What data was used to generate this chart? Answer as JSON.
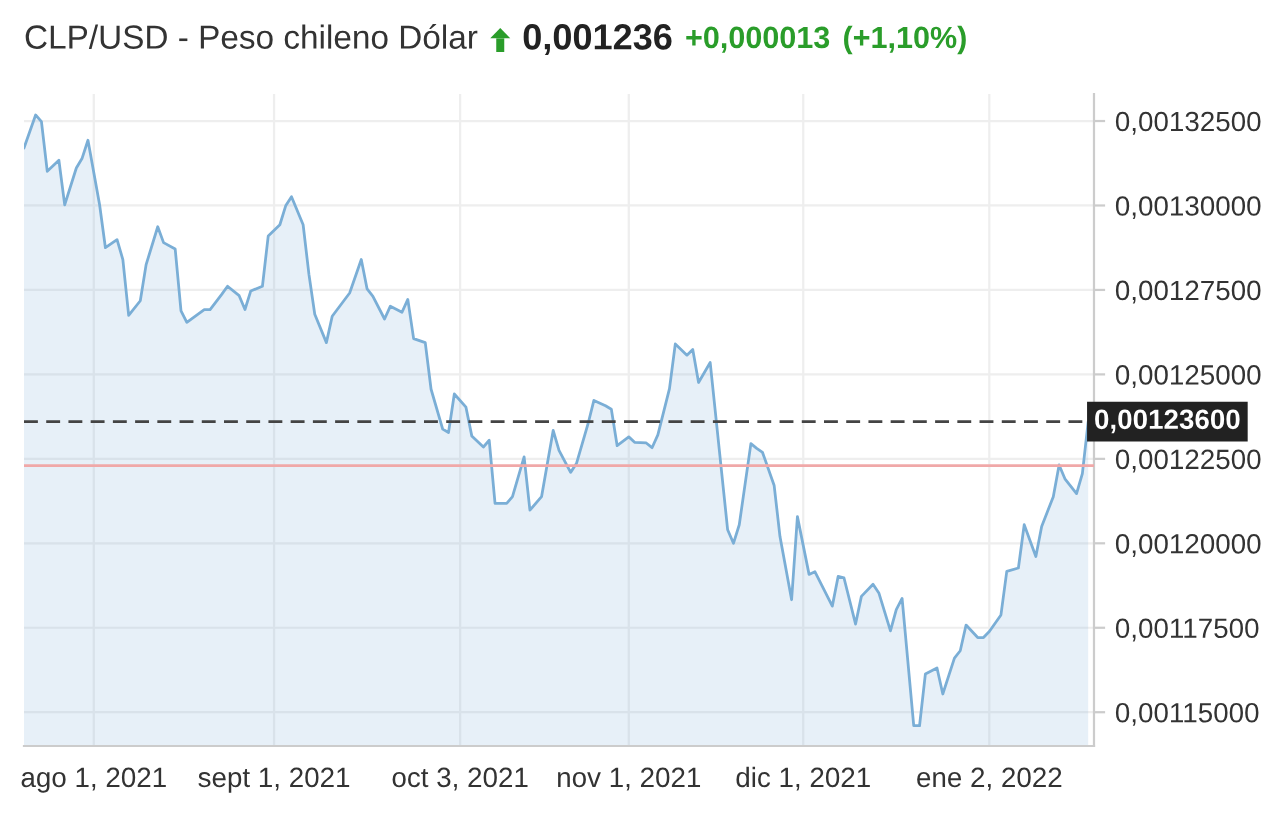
{
  "chart_data": {
    "type": "area",
    "title": "CLP/USD - Peso chileno Dólar",
    "annotations": [
      "0,001236",
      "+0,000013",
      "(+1,10%)"
    ],
    "x": [
      "2021-07-20",
      "2021-07-22",
      "2021-07-23",
      "2021-07-24",
      "2021-07-26",
      "2021-07-27",
      "2021-07-29",
      "2021-07-30",
      "2021-07-31",
      "2021-08-02",
      "2021-08-03",
      "2021-08-05",
      "2021-08-06",
      "2021-08-07",
      "2021-08-09",
      "2021-08-10",
      "2021-08-12",
      "2021-08-13",
      "2021-08-15",
      "2021-08-16",
      "2021-08-17",
      "2021-08-20",
      "2021-08-21",
      "2021-08-23",
      "2021-08-24",
      "2021-08-26",
      "2021-08-27",
      "2021-08-28",
      "2021-08-30",
      "2021-08-31",
      "2021-09-02",
      "2021-09-03",
      "2021-09-04",
      "2021-09-06",
      "2021-09-07",
      "2021-09-08",
      "2021-09-10",
      "2021-09-11",
      "2021-09-13",
      "2021-09-14",
      "2021-09-16",
      "2021-09-17",
      "2021-09-18",
      "2021-09-20",
      "2021-09-21",
      "2021-09-23",
      "2021-09-24",
      "2021-09-25",
      "2021-09-27",
      "2021-09-28",
      "2021-09-30",
      "2021-10-01",
      "2021-10-02",
      "2021-10-04",
      "2021-10-05",
      "2021-10-07",
      "2021-10-08",
      "2021-10-09",
      "2021-10-11",
      "2021-10-12",
      "2021-10-14",
      "2021-10-15",
      "2021-10-17",
      "2021-10-18",
      "2021-10-19",
      "2021-10-20",
      "2021-10-22",
      "2021-10-23",
      "2021-10-25",
      "2021-10-26",
      "2021-10-28",
      "2021-10-29",
      "2021-10-30",
      "2021-11-01",
      "2021-11-02",
      "2021-11-04",
      "2021-11-05",
      "2021-11-06",
      "2021-11-08",
      "2021-11-09",
      "2021-11-11",
      "2021-11-12",
      "2021-11-13",
      "2021-11-15",
      "2021-11-18",
      "2021-11-19",
      "2021-11-20",
      "2021-11-22",
      "2021-11-23",
      "2021-11-24",
      "2021-11-26",
      "2021-11-27",
      "2021-11-29",
      "2021-11-30",
      "2021-12-02",
      "2021-12-03",
      "2021-12-04",
      "2021-12-06",
      "2021-12-07",
      "2021-12-08",
      "2021-12-10",
      "2021-12-11",
      "2021-12-13",
      "2021-12-14",
      "2021-12-16",
      "2021-12-17",
      "2021-12-18",
      "2021-12-20",
      "2021-12-21",
      "2021-12-22",
      "2021-12-24",
      "2021-12-25",
      "2021-12-27",
      "2021-12-28",
      "2021-12-29",
      "2021-12-31",
      "2022-01-01",
      "2022-01-02",
      "2022-01-04",
      "2022-01-05",
      "2022-01-07",
      "2022-01-08",
      "2022-01-10",
      "2022-01-11",
      "2022-01-13",
      "2022-01-14",
      "2022-01-15",
      "2022-01-17",
      "2022-01-18",
      "2022-01-19"
    ],
    "series": [
      {
        "color": "#7aaed6",
        "values": [
          0.001317,
          0.0013268,
          0.0013248,
          0.0013101,
          0.0013134,
          0.0013002,
          0.0013111,
          0.001314,
          0.0013193,
          0.0013002,
          0.0012875,
          0.0012899,
          0.001284,
          0.0012675,
          0.0012718,
          0.0012825,
          0.0012937,
          0.001289,
          0.0012871,
          0.0012688,
          0.0012654,
          0.0012692,
          0.0012692,
          0.0012737,
          0.0012761,
          0.0012733,
          0.0012692,
          0.0012747,
          0.0012761,
          0.001291,
          0.0012943,
          0.0012999,
          0.0013026,
          0.0012943,
          0.0012796,
          0.0012678,
          0.0012594,
          0.0012672,
          0.0012718,
          0.0012741,
          0.001284,
          0.0012753,
          0.0012731,
          0.0012664,
          0.0012702,
          0.0012684,
          0.0012722,
          0.0012606,
          0.0012594,
          0.0012456,
          0.0012338,
          0.0012328,
          0.0012442,
          0.0012403,
          0.0012318,
          0.0012285,
          0.0012305,
          0.0012118,
          0.0012118,
          0.0012138,
          0.0012256,
          0.0012098,
          0.0012138,
          0.0012236,
          0.0012334,
          0.0012275,
          0.001221,
          0.0012236,
          0.0012354,
          0.0012423,
          0.0012407,
          0.0012397,
          0.0012289,
          0.0012315,
          0.0012299,
          0.0012297,
          0.0012283,
          0.0012321,
          0.0012458,
          0.001259,
          0.0012557,
          0.0012574,
          0.0012476,
          0.0012535,
          0.001204,
          0.0012,
          0.0012055,
          0.0012295,
          0.0012281,
          0.0012269,
          0.0012171,
          0.001202,
          0.0011833,
          0.0012079,
          0.0011908,
          0.0011916,
          0.0011882,
          0.0011814,
          0.0011902,
          0.0011898,
          0.0011761,
          0.0011843,
          0.0011879,
          0.0011853,
          0.0011741,
          0.0011804,
          0.0011837,
          0.001146,
          0.001146,
          0.0011613,
          0.0011631,
          0.0011554,
          0.001166,
          0.0011682,
          0.0011758,
          0.0011721,
          0.0011721,
          0.0011739,
          0.0011788,
          0.0011917,
          0.0011927,
          0.0012055,
          0.0011961,
          0.001205,
          0.0012138,
          0.0012232,
          0.0012191,
          0.0012147,
          0.0012206,
          0.001236
        ]
      }
    ],
    "xlim": [
      "2021-07-20",
      "2022-01-20"
    ],
    "xticks": [
      {
        "value": "2021-08-01",
        "label": "ago 1, 2021"
      },
      {
        "value": "2021-09-01",
        "label": "sept 1, 2021"
      },
      {
        "value": "2021-10-03",
        "label": "oct 3, 2021"
      },
      {
        "value": "2021-11-01",
        "label": "nov 1, 2021"
      },
      {
        "value": "2021-12-01",
        "label": "dic 1, 2021"
      },
      {
        "value": "2022-01-02",
        "label": "ene 2, 2022"
      }
    ],
    "ylim": [
      0.00114,
      0.001333
    ],
    "yticks": [
      {
        "value": 0.00115,
        "label": "0,00115000"
      },
      {
        "value": 0.001175,
        "label": "0,00117500"
      },
      {
        "value": 0.0012,
        "label": "0,00120000"
      },
      {
        "value": 0.001225,
        "label": "0,00122500"
      },
      {
        "value": 0.00125,
        "label": "0,00125000"
      },
      {
        "value": 0.001275,
        "label": "0,00127500"
      },
      {
        "value": 0.0013,
        "label": "0,00130000"
      },
      {
        "value": 0.001325,
        "label": "0,00132500"
      }
    ],
    "ref_lines": [
      {
        "axis": "y",
        "value": 0.001236,
        "label": "0,00123600",
        "color": "#444444",
        "line_style": "dashed"
      },
      {
        "axis": "y",
        "value": 0.001223,
        "color": "#f0a8a8",
        "line_style": "solid"
      }
    ],
    "grid": true
  }
}
